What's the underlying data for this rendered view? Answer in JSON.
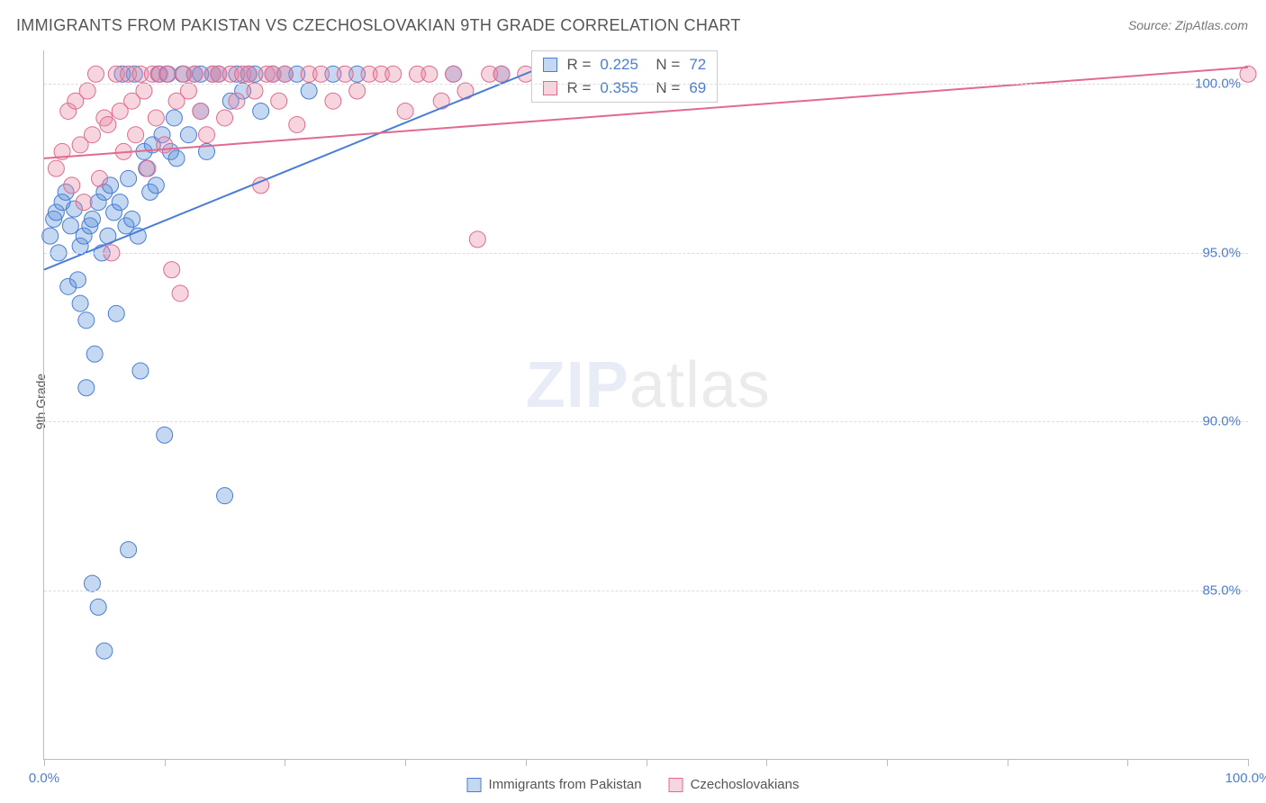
{
  "title": "IMMIGRANTS FROM PAKISTAN VS CZECHOSLOVAKIAN 9TH GRADE CORRELATION CHART",
  "source": "Source: ZipAtlas.com",
  "y_axis_label": "9th Grade",
  "watermark_bold": "ZIP",
  "watermark_rest": "atlas",
  "chart": {
    "type": "scatter",
    "background_color": "#ffffff",
    "grid_color": "#dddddd",
    "axis_color": "#bbbbbb",
    "text_color": "#555555",
    "value_color": "#4a7dd6",
    "xlim": [
      0,
      100
    ],
    "ylim": [
      80,
      101
    ],
    "yticks": [
      85.0,
      90.0,
      95.0,
      100.0
    ],
    "ytick_labels": [
      "85.0%",
      "90.0%",
      "95.0%",
      "100.0%"
    ],
    "xticks": [
      0,
      50,
      100
    ],
    "xtick_labels": [
      "0.0%",
      "",
      "100.0%"
    ],
    "x_axis_minor_ticks": [
      0,
      10,
      20,
      30,
      40,
      50,
      60,
      70,
      80,
      90,
      100
    ],
    "marker_radius": 9,
    "marker_opacity": 0.45,
    "line_width": 2,
    "series": [
      {
        "name": "Immigrants from Pakistan",
        "color": "#5a8fd6",
        "fill": "rgba(90,143,214,0.35)",
        "stroke": "#4a7dd6",
        "r_value": "0.225",
        "n_value": "72",
        "regression": {
          "x1": 0,
          "y1": 94.5,
          "x2": 42,
          "y2": 100.6
        },
        "points": [
          [
            0.5,
            95.5
          ],
          [
            0.8,
            96.0
          ],
          [
            1.0,
            96.2
          ],
          [
            1.2,
            95.0
          ],
          [
            1.5,
            96.5
          ],
          [
            1.8,
            96.8
          ],
          [
            2.0,
            94.0
          ],
          [
            2.2,
            95.8
          ],
          [
            2.5,
            96.3
          ],
          [
            2.8,
            94.2
          ],
          [
            3.0,
            95.2
          ],
          [
            3.3,
            95.5
          ],
          [
            3.5,
            93.0
          ],
          [
            3.8,
            95.8
          ],
          [
            4.0,
            96.0
          ],
          [
            4.2,
            92.0
          ],
          [
            4.5,
            96.5
          ],
          [
            4.8,
            95.0
          ],
          [
            5.0,
            96.8
          ],
          [
            5.3,
            95.5
          ],
          [
            5.5,
            97.0
          ],
          [
            5.8,
            96.2
          ],
          [
            6.0,
            93.2
          ],
          [
            6.3,
            96.5
          ],
          [
            6.5,
            100.3
          ],
          [
            6.8,
            95.8
          ],
          [
            7.0,
            97.2
          ],
          [
            7.3,
            96.0
          ],
          [
            7.5,
            100.3
          ],
          [
            7.8,
            95.5
          ],
          [
            8.0,
            91.5
          ],
          [
            8.3,
            98.0
          ],
          [
            8.5,
            97.5
          ],
          [
            8.8,
            96.8
          ],
          [
            9.0,
            98.2
          ],
          [
            9.3,
            97.0
          ],
          [
            9.5,
            100.3
          ],
          [
            9.8,
            98.5
          ],
          [
            10.0,
            89.6
          ],
          [
            10.2,
            100.3
          ],
          [
            10.5,
            98.0
          ],
          [
            10.8,
            99.0
          ],
          [
            11.0,
            97.8
          ],
          [
            11.5,
            100.3
          ],
          [
            12.0,
            98.5
          ],
          [
            12.5,
            100.3
          ],
          [
            13.0,
            99.2
          ],
          [
            13.5,
            98.0
          ],
          [
            14.0,
            100.3
          ],
          [
            14.5,
            100.3
          ],
          [
            15.0,
            87.8
          ],
          [
            15.5,
            99.5
          ],
          [
            16.0,
            100.3
          ],
          [
            16.5,
            99.8
          ],
          [
            17.0,
            100.3
          ],
          [
            17.5,
            100.3
          ],
          [
            18.0,
            99.2
          ],
          [
            19.0,
            100.3
          ],
          [
            20.0,
            100.3
          ],
          [
            21.0,
            100.3
          ],
          [
            22.0,
            99.8
          ],
          [
            3.0,
            93.5
          ],
          [
            3.5,
            91.0
          ],
          [
            4.0,
            85.2
          ],
          [
            4.5,
            84.5
          ],
          [
            5.0,
            83.2
          ],
          [
            7.0,
            86.2
          ],
          [
            13.0,
            100.3
          ],
          [
            24.0,
            100.3
          ],
          [
            26.0,
            100.3
          ],
          [
            34.0,
            100.3
          ],
          [
            38.0,
            100.3
          ]
        ]
      },
      {
        "name": "Czechoslovakians",
        "color": "#e886a3",
        "fill": "rgba(232,134,163,0.35)",
        "stroke": "#e06b8f",
        "r_value": "0.355",
        "n_value": "69",
        "regression": {
          "x1": 0,
          "y1": 97.8,
          "x2": 100,
          "y2": 100.5
        },
        "points": [
          [
            1.0,
            97.5
          ],
          [
            1.5,
            98.0
          ],
          [
            2.0,
            99.2
          ],
          [
            2.3,
            97.0
          ],
          [
            2.6,
            99.5
          ],
          [
            3.0,
            98.2
          ],
          [
            3.3,
            96.5
          ],
          [
            3.6,
            99.8
          ],
          [
            4.0,
            98.5
          ],
          [
            4.3,
            100.3
          ],
          [
            4.6,
            97.2
          ],
          [
            5.0,
            99.0
          ],
          [
            5.3,
            98.8
          ],
          [
            5.6,
            95.0
          ],
          [
            6.0,
            100.3
          ],
          [
            6.3,
            99.2
          ],
          [
            6.6,
            98.0
          ],
          [
            7.0,
            100.3
          ],
          [
            7.3,
            99.5
          ],
          [
            7.6,
            98.5
          ],
          [
            8.0,
            100.3
          ],
          [
            8.3,
            99.8
          ],
          [
            8.6,
            97.5
          ],
          [
            9.0,
            100.3
          ],
          [
            9.3,
            99.0
          ],
          [
            9.6,
            100.3
          ],
          [
            10.0,
            98.2
          ],
          [
            10.3,
            100.3
          ],
          [
            10.6,
            94.5
          ],
          [
            11.0,
            99.5
          ],
          [
            11.3,
            93.8
          ],
          [
            11.6,
            100.3
          ],
          [
            12.0,
            99.8
          ],
          [
            12.5,
            100.3
          ],
          [
            13.0,
            99.2
          ],
          [
            13.5,
            98.5
          ],
          [
            14.0,
            100.3
          ],
          [
            14.5,
            100.3
          ],
          [
            15.0,
            99.0
          ],
          [
            15.5,
            100.3
          ],
          [
            16.0,
            99.5
          ],
          [
            16.5,
            100.3
          ],
          [
            17.0,
            100.3
          ],
          [
            17.5,
            99.8
          ],
          [
            18.0,
            97.0
          ],
          [
            18.5,
            100.3
          ],
          [
            19.0,
            100.3
          ],
          [
            19.5,
            99.5
          ],
          [
            20.0,
            100.3
          ],
          [
            21.0,
            98.8
          ],
          [
            22.0,
            100.3
          ],
          [
            23.0,
            100.3
          ],
          [
            24.0,
            99.5
          ],
          [
            25.0,
            100.3
          ],
          [
            26.0,
            99.8
          ],
          [
            27.0,
            100.3
          ],
          [
            28.0,
            100.3
          ],
          [
            29.0,
            100.3
          ],
          [
            30.0,
            99.2
          ],
          [
            31.0,
            100.3
          ],
          [
            32.0,
            100.3
          ],
          [
            33.0,
            99.5
          ],
          [
            34.0,
            100.3
          ],
          [
            35.0,
            99.8
          ],
          [
            36.0,
            95.4
          ],
          [
            37.0,
            100.3
          ],
          [
            38.0,
            100.3
          ],
          [
            40.0,
            100.3
          ],
          [
            100.0,
            100.3
          ]
        ]
      }
    ]
  },
  "stats_box": {
    "left_pct": 40.5,
    "top_pct": 0
  },
  "legend": [
    {
      "label": "Immigrants from Pakistan",
      "fill": "rgba(90,143,214,0.35)",
      "stroke": "#4a7dd6"
    },
    {
      "label": "Czechoslovakians",
      "fill": "rgba(232,134,163,0.35)",
      "stroke": "#e06b8f"
    }
  ]
}
